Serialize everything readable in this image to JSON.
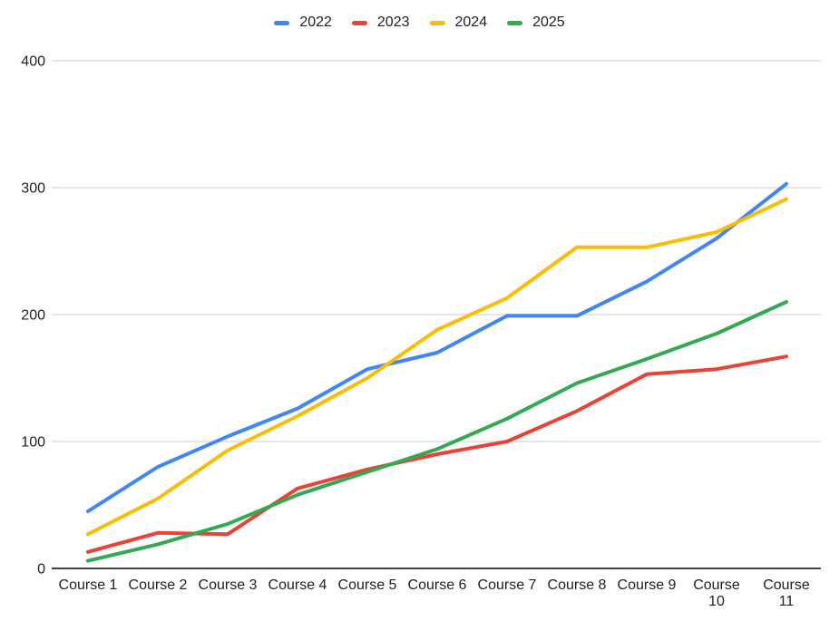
{
  "chart_data": {
    "type": "line",
    "title": "",
    "xlabel": "",
    "ylabel": "",
    "categories": [
      "Course 1",
      "Course 2",
      "Course 3",
      "Course 4",
      "Course 5",
      "Course 6",
      "Course 7",
      "Course 8",
      "Course 9",
      "Course 10",
      "Course 11"
    ],
    "series": [
      {
        "name": "2022",
        "color": "#4285F4",
        "values": [
          45,
          80,
          104,
          126,
          157,
          170,
          199,
          199,
          226,
          260,
          303
        ]
      },
      {
        "name": "2023",
        "color": "#EA4335",
        "values": [
          13,
          28,
          27,
          63,
          78,
          90,
          100,
          124,
          153,
          157,
          167
        ]
      },
      {
        "name": "2024",
        "color": "#FBBC04",
        "values": [
          27,
          55,
          93,
          120,
          150,
          188,
          213,
          253,
          253,
          265,
          291
        ]
      },
      {
        "name": "2025",
        "color": "#34A853",
        "values": [
          6,
          19,
          35,
          58,
          76,
          94,
          118,
          146,
          165,
          185,
          210
        ]
      }
    ],
    "y_ticks": [
      0,
      100,
      200,
      300,
      400
    ],
    "y_tick_labels": [
      "0",
      "100",
      "200",
      "300",
      "400"
    ],
    "ylim": [
      0,
      400
    ],
    "grid": true,
    "legend_position": "top"
  },
  "colors": {
    "background": "#ffffff",
    "gridline": "#e6e6e6",
    "axis_line": "#424242",
    "tick_text": "#202124",
    "legend_text": "#202124"
  }
}
